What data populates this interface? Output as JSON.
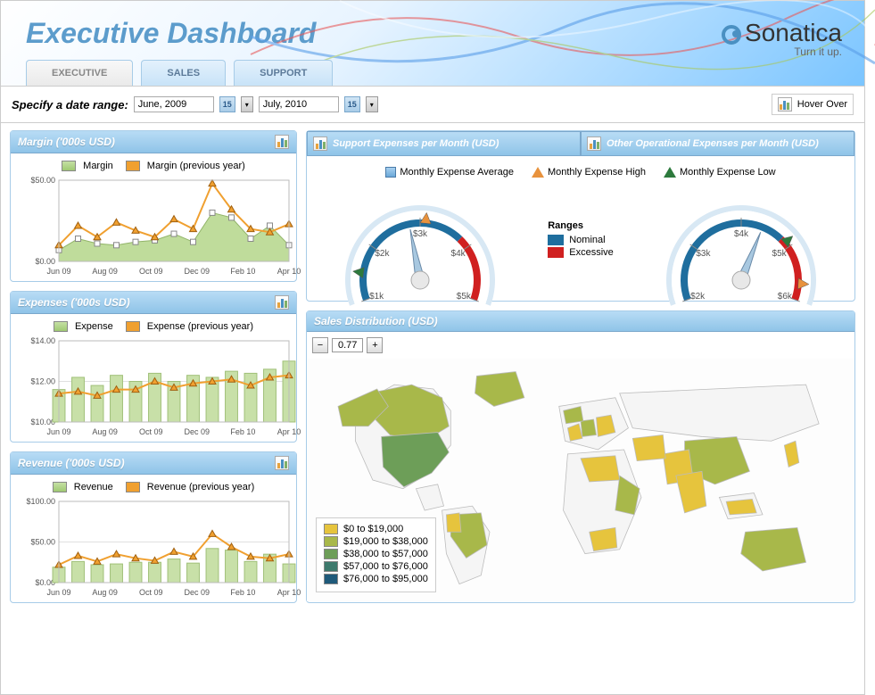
{
  "header": {
    "title": "Executive Dashboard",
    "logo_brand": "Sonatica",
    "logo_tagline": "Turn it up."
  },
  "tabs": [
    {
      "label": "EXECUTIVE",
      "active": true
    },
    {
      "label": "SALES",
      "active": false
    },
    {
      "label": "SUPPORT",
      "active": false
    }
  ],
  "toolbar": {
    "range_label": "Specify a date range:",
    "date_from": "June, 2009",
    "date_to": "July, 2010",
    "cal_day": "15",
    "hover_label": "Hover Over"
  },
  "margin_chart": {
    "title": "Margin ('000s USD)",
    "type": "area+line",
    "legend_current": "Margin",
    "legend_previous": "Margin (previous year)",
    "x_labels": [
      "Jun 09",
      "Aug 09",
      "Oct 09",
      "Dec 09",
      "Feb 10",
      "Apr 10"
    ],
    "y_labels": [
      "$0.00",
      "$50.00"
    ],
    "ylim": [
      0,
      50
    ],
    "current": [
      7,
      14,
      11,
      10,
      12,
      13,
      17,
      12,
      30,
      27,
      14,
      22,
      10
    ],
    "previous": [
      10,
      22,
      15,
      24,
      19,
      15,
      26,
      20,
      48,
      32,
      20,
      18,
      23
    ],
    "area_color": "#b5d68a",
    "area_border": "#7fa84f",
    "line_color": "#f0a030",
    "marker_current": "square",
    "marker_previous": "triangle",
    "grid_color": "#e0e0e0",
    "bg_color": "#ffffff"
  },
  "expenses_chart": {
    "title": "Expenses ('000s USD)",
    "type": "bar+line",
    "legend_current": "Expense",
    "legend_previous": "Expense (previous year)",
    "x_labels": [
      "Jun 09",
      "Aug 09",
      "Oct 09",
      "Dec 09",
      "Feb 10",
      "Apr 10"
    ],
    "y_labels": [
      "$10.00",
      "$12.00",
      "$14.00"
    ],
    "ylim": [
      10,
      14
    ],
    "current": [
      11.6,
      12.2,
      11.8,
      12.3,
      12.0,
      12.4,
      12.0,
      12.3,
      12.2,
      12.5,
      12.4,
      12.6,
      13.0
    ],
    "previous": [
      11.4,
      11.5,
      11.3,
      11.6,
      11.6,
      12.0,
      11.7,
      11.9,
      12.0,
      12.1,
      11.8,
      12.2,
      12.3
    ],
    "bar_fill": "#c8e0a8",
    "bar_border": "#a0c078",
    "line_color": "#f0a030",
    "grid_color": "#e0e0e0"
  },
  "revenue_chart": {
    "title": "Revenue ('000s USD)",
    "type": "bar+line",
    "legend_current": "Revenue",
    "legend_previous": "Revenue (previous year)",
    "x_labels": [
      "Jun 09",
      "Aug 09",
      "Oct 09",
      "Dec 09",
      "Feb 10",
      "Apr 10"
    ],
    "y_labels": [
      "$0.00",
      "$50.00",
      "$100.00"
    ],
    "ylim": [
      0,
      100
    ],
    "current": [
      19,
      26,
      22,
      23,
      25,
      25,
      29,
      24,
      42,
      40,
      26,
      35,
      23
    ],
    "previous": [
      22,
      33,
      26,
      35,
      30,
      27,
      38,
      32,
      60,
      44,
      32,
      30,
      35
    ],
    "bar_fill": "#c8e0a8",
    "bar_border": "#a0c078",
    "line_color": "#f0a030",
    "grid_color": "#e0e0e0"
  },
  "gauges": {
    "tab1_title": "Support Expenses per Month (USD)",
    "tab2_title": "Other Operational Expenses per Month (USD)",
    "legend_avg": "Monthly Expense Average",
    "legend_high": "Monthly Expense High",
    "legend_low": "Monthly Expense Low",
    "ranges_title": "Ranges",
    "range_nominal_label": "Nominal",
    "range_nominal_color": "#1f6e9e",
    "range_excessive_label": "Excessive",
    "range_excessive_color": "#d02020",
    "gauge1": {
      "min": 1000,
      "max": 5000,
      "ticks": [
        "$1k",
        "$2k",
        "$3k",
        "$4k",
        "$5k"
      ],
      "nominal_range": [
        1000,
        3800
      ],
      "excessive_range": [
        3800,
        5000
      ],
      "avg_value": 2800,
      "high_value": 3100,
      "low_value": 1500,
      "needle_color": "#a8c8e0",
      "face_color": "#f8f8f8"
    },
    "gauge2": {
      "min": 2000,
      "max": 6000,
      "ticks": [
        "$2k",
        "$3k",
        "$4k",
        "$5k",
        "$6k"
      ],
      "nominal_range": [
        2000,
        4800
      ],
      "excessive_range": [
        4800,
        6000
      ],
      "avg_value": 4400,
      "high_value": 5700,
      "low_value": 4900,
      "needle_color": "#a8c8e0",
      "face_color": "#f8f8f8"
    }
  },
  "map": {
    "title": "Sales Distribution (USD)",
    "zoom_value": "0.77",
    "legend": [
      {
        "label": "$0 to $19,000",
        "color": "#e6c43d"
      },
      {
        "label": "$19,000 to $38,000",
        "color": "#a8b84a"
      },
      {
        "label": "$38,000 to $57,000",
        "color": "#6d9e58"
      },
      {
        "label": "$57,000 to $76,000",
        "color": "#3d7a6d"
      },
      {
        "label": "$76,000 to $95,000",
        "color": "#1f5a7a"
      }
    ],
    "land_color": "#f5f5f5",
    "border_color": "#bbbbbb"
  }
}
